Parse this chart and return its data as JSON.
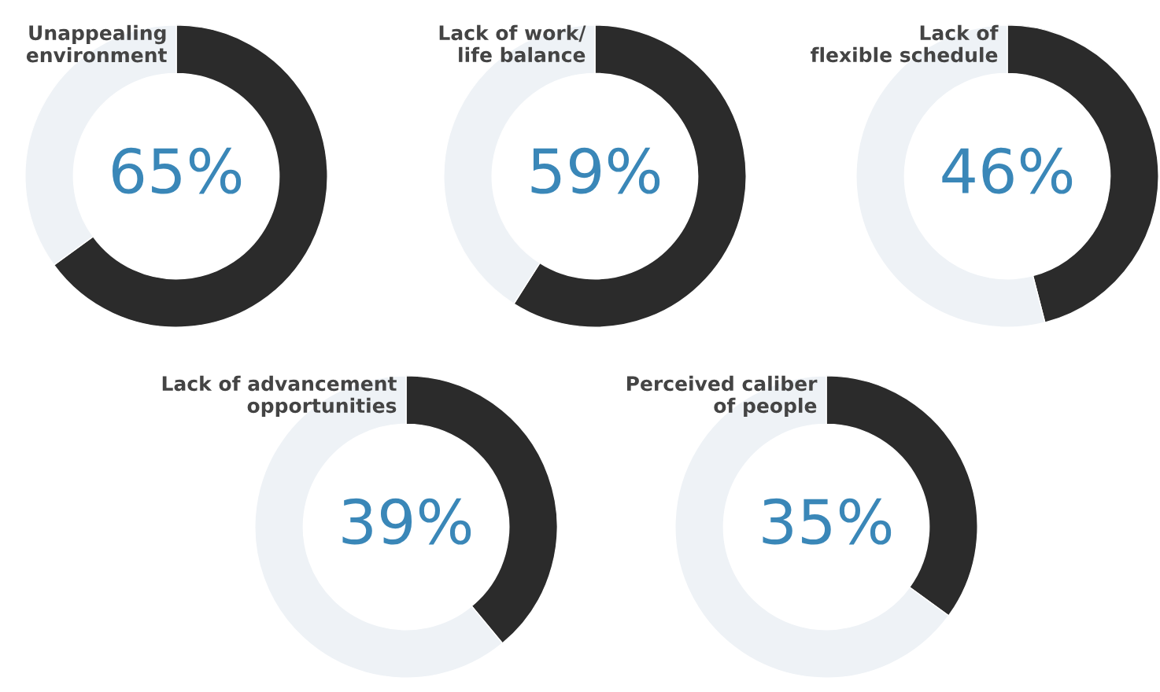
{
  "chart_data": [
    {
      "type": "donut",
      "title": "Unappealing\nenvironment",
      "categories": [
        null,
        null
      ],
      "values": [
        65,
        35
      ],
      "colors": [
        "#2b2b2b",
        "#eef2f6"
      ],
      "value_labels": [
        "65%",
        null
      ]
    },
    {
      "type": "donut",
      "title": "Lack of work/\nlife balance",
      "categories": [
        null,
        null
      ],
      "values": [
        59,
        41
      ],
      "colors": [
        "#2b2b2b",
        "#eef2f6"
      ],
      "value_labels": [
        "59%",
        null
      ]
    },
    {
      "type": "donut",
      "title": "Lack of\nflexible schedule",
      "categories": [
        null,
        null
      ],
      "values": [
        46,
        54
      ],
      "colors": [
        "#2b2b2b",
        "#eef2f6"
      ],
      "value_labels": [
        "46%",
        null
      ]
    },
    {
      "type": "donut",
      "title": "Lack of advancement\nopportunities",
      "categories": [
        null,
        null
      ],
      "values": [
        39,
        61
      ],
      "colors": [
        "#2b2b2b",
        "#eef2f6"
      ],
      "value_labels": [
        "39%",
        null
      ]
    },
    {
      "type": "donut",
      "title": "Perceived caliber\nof people",
      "categories": [
        null,
        null
      ],
      "values": [
        35,
        65
      ],
      "colors": [
        "#2b2b2b",
        "#eef2f6"
      ],
      "value_labels": [
        "35%",
        null
      ]
    }
  ]
}
